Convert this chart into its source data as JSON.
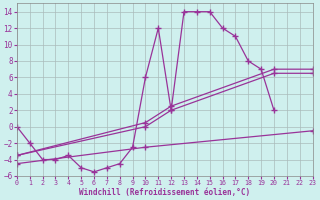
{
  "background_color": "#cff0ee",
  "grid_color": "#aabbbb",
  "line_color": "#993399",
  "xlabel": "Windchill (Refroidissement éolien,°C)",
  "xlim": [
    0,
    23
  ],
  "ylim": [
    -6,
    15
  ],
  "yticks": [
    -6,
    -4,
    -2,
    0,
    2,
    4,
    6,
    8,
    10,
    12,
    14
  ],
  "xticks": [
    0,
    1,
    2,
    3,
    4,
    5,
    6,
    7,
    8,
    9,
    10,
    11,
    12,
    13,
    14,
    15,
    16,
    17,
    18,
    19,
    20,
    21,
    22,
    23
  ],
  "line1_x": [
    0,
    1,
    2,
    3,
    4,
    5,
    6,
    7,
    8,
    9,
    10,
    11,
    12,
    13,
    14,
    15,
    16,
    17,
    18,
    19,
    20
  ],
  "line1_y": [
    0,
    -2,
    -4,
    -4,
    -3.5,
    -5,
    -5.5,
    -5,
    -4.5,
    -2.5,
    6,
    12,
    2,
    14,
    14,
    14,
    12,
    11,
    8,
    7,
    2
  ],
  "line2_x": [
    0,
    10,
    12,
    20,
    23
  ],
  "line2_y": [
    -3.5,
    0.5,
    2.5,
    7.0,
    7.0
  ],
  "line3_x": [
    0,
    10,
    12,
    20,
    23
  ],
  "line3_y": [
    -3.5,
    0.0,
    2.0,
    6.5,
    6.5
  ],
  "line4_x": [
    0,
    10,
    23
  ],
  "line4_y": [
    -4.5,
    -2.5,
    -0.5
  ]
}
